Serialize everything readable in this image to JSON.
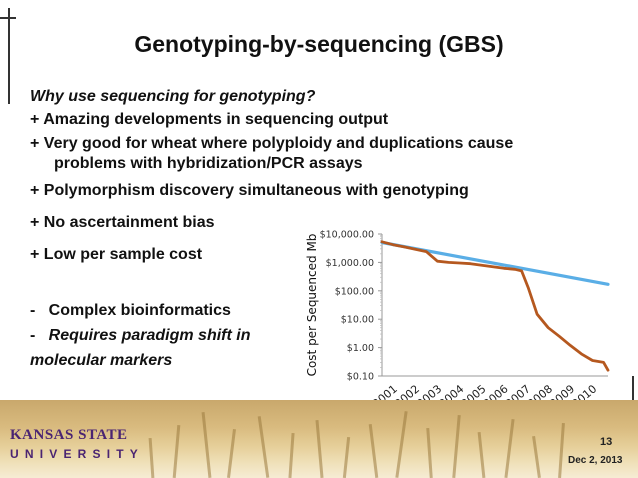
{
  "slide": {
    "title": "Genotyping-by-sequencing (GBS)",
    "bullets": [
      {
        "text": "Why use sequencing for genotyping?",
        "style": "italic"
      },
      {
        "text": "+ Amazing developments in sequencing output"
      },
      {
        "text": "+ Very good for wheat where polyploidy and duplications cause"
      },
      {
        "text": "problems with hybridization/PCR assays"
      },
      {
        "text": "+ Polymorphism discovery simultaneous with genotyping"
      },
      {
        "text": "+ No ascertainment bias"
      },
      {
        "text": "+ Low per sample cost"
      },
      {
        "text": "-   Complex bioinformatics"
      },
      {
        "text": "Requires paradigm shift in",
        "prefix": "-   ",
        "style": "italic"
      },
      {
        "text": "molecular markers",
        "style": "italic"
      }
    ],
    "page_number": "13",
    "date": "Dec 2, 2013",
    "logo": {
      "line1": "KANSAS STATE",
      "line2": "UNIVERSITY",
      "color": "#4a2472"
    }
  },
  "chart_data": {
    "type": "line",
    "ylabel": "Cost per Sequenced Mb",
    "yscale": "log",
    "ylim": [
      0.1,
      10000
    ],
    "yticks": [
      "$10,000.00",
      "$1,000.00",
      "$100.00",
      "$10.00",
      "$1.00",
      "$0.10"
    ],
    "ytick_values": [
      10000,
      1000,
      100,
      10,
      1,
      0.1
    ],
    "xticks": [
      "2001",
      "2002",
      "2003",
      "2004",
      "2005",
      "2006",
      "2007",
      "2008",
      "2009",
      "2010"
    ],
    "xlim": [
      2001,
      2011.2
    ],
    "series": [
      {
        "color": "#5aaee6",
        "x": [
          2001.0,
          2011.2
        ],
        "y": [
          5000,
          170
        ]
      },
      {
        "color": "#b5581f",
        "x": [
          2001.0,
          2001.5,
          2002.0,
          2002.5,
          2003.0,
          2003.5,
          2004.0,
          2004.5,
          2005.0,
          2005.5,
          2006.0,
          2006.5,
          2007.0,
          2007.3,
          2007.6,
          2008.0,
          2008.5,
          2009.0,
          2009.5,
          2010.0,
          2010.5,
          2011.0,
          2011.2
        ],
        "y": [
          5300,
          4200,
          3500,
          2900,
          2400,
          1100,
          1000,
          950,
          900,
          800,
          700,
          620,
          570,
          500,
          130,
          15,
          5,
          2.5,
          1.2,
          0.6,
          0.35,
          0.3,
          0.16
        ]
      }
    ]
  }
}
